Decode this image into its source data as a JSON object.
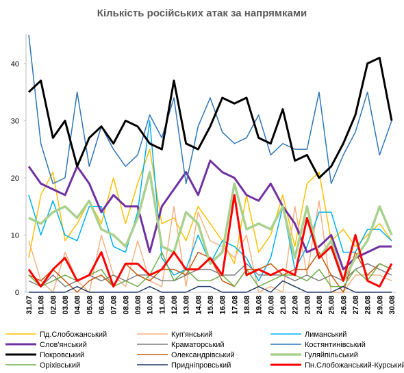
{
  "chart_data": {
    "type": "line",
    "title": "Кількість російських атак за напрямками",
    "categories": [
      "31.07",
      "01.08",
      "02.08",
      "03.08",
      "04.08",
      "05.08",
      "06.08",
      "07.08",
      "08.08",
      "09.08",
      "10.08",
      "11.08",
      "12.08",
      "13.08",
      "14.08",
      "15.08",
      "16.08",
      "17.08",
      "18.08",
      "19.08",
      "20.08",
      "21.08",
      "22.08",
      "23.08",
      "24.08",
      "25.08",
      "26.08",
      "27.08",
      "28.08",
      "29.08",
      "30.08"
    ],
    "ylim": [
      0,
      45
    ],
    "yticks": [
      0,
      10,
      20,
      30,
      40
    ],
    "grid": false,
    "series": [
      {
        "name": "Пд.Слобожанський",
        "color": "#ffc000",
        "width": 1.5,
        "values": [
          6,
          17,
          21,
          9,
          12,
          16,
          12,
          20,
          12,
          19,
          25,
          12,
          13,
          9,
          15,
          12,
          9,
          5,
          17,
          7,
          10,
          17,
          8,
          19,
          21,
          9,
          11,
          8,
          10,
          12,
          9
        ]
      },
      {
        "name": "Куп'янський",
        "color": "#f4b183",
        "width": 1.5,
        "values": [
          9,
          2,
          0,
          7,
          2,
          0,
          10,
          3,
          1,
          9,
          2,
          1,
          15,
          1,
          14,
          9,
          8,
          6,
          10,
          0,
          1,
          0,
          15,
          3,
          16,
          0,
          0,
          3,
          3,
          3,
          2
        ]
      },
      {
        "name": "Лиманський",
        "color": "#00b0f0",
        "width": 1.5,
        "values": [
          17,
          10,
          16,
          10,
          9,
          15,
          15,
          8,
          7,
          14,
          30,
          6,
          3,
          4,
          10,
          5,
          9,
          8,
          6,
          2,
          6,
          15,
          4,
          8,
          14,
          14,
          7,
          7,
          11,
          11,
          9
        ]
      },
      {
        "name": "Слов'янський",
        "color": "#7030a0",
        "width": 3,
        "values": [
          22,
          19,
          18,
          17,
          22,
          19,
          14,
          17,
          15,
          15,
          7,
          15,
          18,
          21,
          17,
          23,
          21,
          20,
          17,
          16,
          19,
          15,
          12,
          7,
          8,
          10,
          4,
          6,
          7,
          8,
          8
        ]
      },
      {
        "name": "Краматорський",
        "color": "#7f7f7f",
        "width": 1.5,
        "values": [
          2,
          1,
          3,
          1,
          2,
          3,
          2,
          3,
          2,
          3,
          3,
          2,
          2,
          3,
          4,
          4,
          3,
          3,
          5,
          3,
          3,
          3,
          2,
          3,
          2,
          3,
          2,
          4,
          5,
          4,
          3
        ]
      },
      {
        "name": "Костянтинівський",
        "color": "#2e75b6",
        "width": 1.5,
        "values": [
          45,
          26,
          19,
          20,
          35,
          22,
          29,
          25,
          22,
          24,
          31,
          27,
          34,
          19,
          29,
          34,
          28,
          26,
          27,
          31,
          24,
          26,
          25,
          25,
          35,
          19,
          24,
          28,
          35,
          24,
          30
        ]
      },
      {
        "name": "Покровський",
        "color": "#000000",
        "width": 3,
        "values": [
          35,
          37,
          27,
          30,
          22,
          27,
          29,
          26,
          30,
          29,
          26,
          25,
          37,
          26,
          25,
          29,
          34,
          33,
          34,
          27,
          26,
          32,
          23,
          24,
          20,
          22,
          26,
          31,
          40,
          41,
          30
        ]
      },
      {
        "name": "Олександрівський",
        "color": "#c55a11",
        "width": 1.5,
        "values": [
          3,
          2,
          4,
          2,
          0,
          2,
          3,
          1,
          5,
          3,
          2,
          4,
          4,
          3,
          7,
          6,
          2,
          1,
          4,
          4,
          5,
          3,
          4,
          4,
          7,
          3,
          0,
          7,
          3,
          5,
          4
        ]
      },
      {
        "name": "Гуляйпільський",
        "color": "#a9d18e",
        "width": 3.5,
        "values": [
          13,
          12,
          14,
          15,
          13,
          16,
          11,
          10,
          8,
          13,
          21,
          8,
          7,
          14,
          12,
          5,
          7,
          19,
          11,
          12,
          11,
          15,
          6,
          15,
          6,
          9,
          2,
          6,
          9,
          15,
          10
        ]
      },
      {
        "name": "Оріхівський",
        "color": "#70ad47",
        "width": 1.5,
        "values": [
          3,
          1,
          2,
          3,
          2,
          3,
          4,
          1,
          2,
          1,
          3,
          7,
          2,
          4,
          2,
          2,
          3,
          1,
          4,
          1,
          2,
          3,
          3,
          2,
          4,
          1,
          1,
          4,
          2,
          5,
          4
        ]
      },
      {
        "name": "Придніпровський",
        "color": "#1f3864",
        "width": 1.5,
        "values": [
          0,
          0,
          0,
          0,
          1,
          0,
          0,
          0,
          0,
          0,
          1,
          0,
          0,
          0,
          1,
          1,
          0,
          0,
          0,
          1,
          0,
          2,
          1,
          0,
          0,
          0,
          1,
          0,
          0,
          0,
          0
        ]
      },
      {
        "name": "Пн.Слобожанський-Курський",
        "color": "#ff0000",
        "width": 3,
        "values": [
          4,
          1,
          4,
          6,
          2,
          3,
          7,
          1,
          5,
          5,
          3,
          4,
          7,
          4,
          4,
          6,
          3,
          17,
          3,
          4,
          3,
          4,
          3,
          13,
          6,
          8,
          2,
          10,
          2,
          1,
          5
        ]
      }
    ]
  }
}
